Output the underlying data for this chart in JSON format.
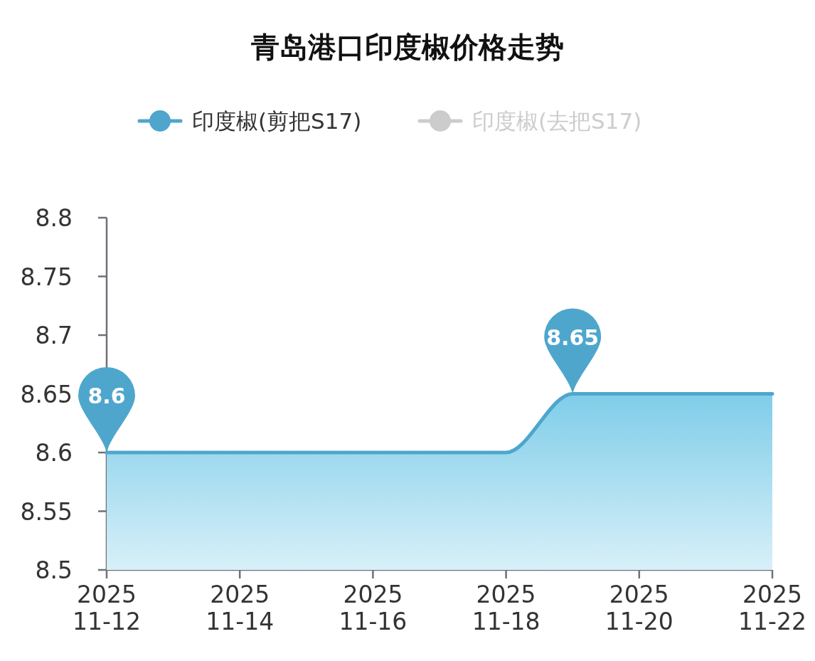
{
  "chart_data": {
    "type": "area",
    "title": "青岛港口印度椒价格走势",
    "x": [
      "2025-11-12",
      "2025-11-13",
      "2025-11-14",
      "2025-11-15",
      "2025-11-16",
      "2025-11-17",
      "2025-11-18",
      "2025-11-19",
      "2025-11-20",
      "2025-11-21",
      "2025-11-22"
    ],
    "series": [
      {
        "name": "印度椒(剪把S17)",
        "color": "#4ea6cd",
        "values": [
          8.6,
          8.6,
          8.6,
          8.6,
          8.6,
          8.6,
          8.6,
          8.65,
          8.65,
          8.65,
          8.65
        ],
        "value_labels": [
          "8.6",
          null,
          null,
          null,
          null,
          null,
          null,
          "8.65",
          null,
          null,
          null
        ]
      },
      {
        "name": "印度椒(去把S17)",
        "color": "#cccccc",
        "values": [
          null,
          null,
          null,
          null,
          null,
          null,
          null,
          null,
          null,
          null,
          null
        ]
      }
    ],
    "xlim": [
      "2025-11-12",
      "2025-11-22"
    ],
    "xticks": [
      {
        "value": "2025-11-12",
        "label": "2025\n11-12"
      },
      {
        "value": "2025-11-14",
        "label": "2025\n11-14"
      },
      {
        "value": "2025-11-16",
        "label": "2025\n11-16"
      },
      {
        "value": "2025-11-18",
        "label": "2025\n11-18"
      },
      {
        "value": "2025-11-20",
        "label": "2025\n11-20"
      },
      {
        "value": "2025-11-22",
        "label": "2025\n11-22"
      }
    ],
    "ylim": [
      8.5,
      8.8
    ],
    "yticks": [
      8.5,
      8.55,
      8.6,
      8.65,
      8.7,
      8.75,
      8.8
    ],
    "legend": "top",
    "grid": false
  }
}
